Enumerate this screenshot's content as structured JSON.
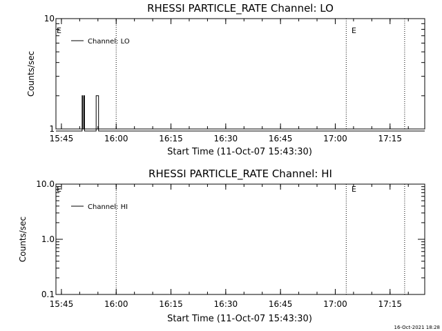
{
  "chart_data": [
    {
      "type": "line",
      "title": "RHESSI PARTICLE_RATE Channel: LO",
      "xlabel": "Start Time (11-Oct-07 15:43:30)",
      "ylabel": "Counts/sec",
      "yscale": "log",
      "ylim": [
        1,
        10
      ],
      "ytick_labels": [
        "1",
        "10"
      ],
      "xlim": [
        "15:43:30",
        "17:24:30"
      ],
      "xtick_labels": [
        "15:45",
        "16:00",
        "16:15",
        "16:30",
        "16:45",
        "17:00",
        "17:15"
      ],
      "legend": {
        "placement": "top-left",
        "entries": [
          "Channel: LO"
        ]
      },
      "series": [
        {
          "name": "Channel: LO",
          "x": [
            "15:43:30",
            "15:50:40",
            "15:50:40",
            "15:50:50",
            "15:50:50",
            "15:51:10",
            "15:51:10",
            "15:51:20",
            "15:51:20",
            "15:54:30",
            "15:54:30",
            "15:55:10",
            "15:55:10",
            "17:24:30"
          ],
          "values": [
            0,
            0,
            2,
            2,
            1,
            1,
            2,
            2,
            0,
            0,
            2,
            2,
            0,
            0
          ]
        }
      ],
      "vlines": [
        "16:00:00",
        "17:03:00",
        "17:19:00"
      ],
      "annotations": [
        "E",
        "E"
      ],
      "grid": false
    },
    {
      "type": "line",
      "title": "RHESSI PARTICLE_RATE Channel: HI",
      "xlabel": "Start Time (11-Oct-07 15:43:30)",
      "ylabel": "Counts/sec",
      "yscale": "log",
      "ylim": [
        0.1,
        10
      ],
      "ytick_labels": [
        "0.1",
        "1.0",
        "10.0"
      ],
      "xlim": [
        "15:43:30",
        "17:24:30"
      ],
      "xtick_labels": [
        "15:45",
        "16:00",
        "16:15",
        "16:30",
        "16:45",
        "17:00",
        "17:15"
      ],
      "legend": {
        "placement": "top-left",
        "entries": [
          "Channel: HI"
        ]
      },
      "series": [
        {
          "name": "Channel: HI",
          "x": [],
          "values": []
        }
      ],
      "vlines": [
        "16:00:00",
        "17:03:00",
        "17:19:00"
      ],
      "annotations": [
        "E",
        "E"
      ],
      "grid": false
    }
  ],
  "footer": {
    "timestamp": "16-Oct-2021 18:28"
  }
}
